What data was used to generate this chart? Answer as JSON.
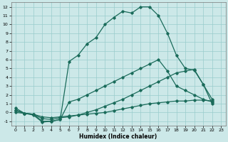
{
  "xlabel": "Humidex (Indice chaleur)",
  "xlim": [
    -0.5,
    23.5
  ],
  "ylim": [
    -1.5,
    12.5
  ],
  "xticks": [
    0,
    1,
    2,
    3,
    4,
    5,
    6,
    7,
    8,
    9,
    10,
    11,
    12,
    13,
    14,
    15,
    16,
    17,
    18,
    19,
    20,
    21,
    22,
    23
  ],
  "yticks": [
    -1,
    0,
    1,
    2,
    3,
    4,
    5,
    6,
    7,
    8,
    9,
    10,
    11,
    12
  ],
  "background_color": "#cce8e8",
  "grid_color": "#99cccc",
  "line_color": "#1a6b5a",
  "line1_x": [
    0,
    1,
    2,
    3,
    4,
    5,
    6,
    7,
    8,
    9,
    10,
    11,
    12,
    13,
    14,
    15,
    16,
    17,
    18,
    19,
    20,
    21,
    22
  ],
  "line1_y": [
    0.5,
    -0.1,
    -0.3,
    -1.1,
    -1.0,
    -0.8,
    5.8,
    6.5,
    7.8,
    8.5,
    10.0,
    10.8,
    11.5,
    11.3,
    12.0,
    12.0,
    11.0,
    9.0,
    6.5,
    5.0,
    4.8,
    3.2,
    1.5
  ],
  "line2_x": [
    0,
    1,
    2,
    3,
    4,
    5,
    6,
    7,
    8,
    9,
    10,
    11,
    12,
    13,
    14,
    15,
    16,
    17,
    18,
    19,
    20,
    21,
    22
  ],
  "line2_y": [
    0.3,
    -0.1,
    -0.2,
    -1.0,
    -1.0,
    -0.8,
    1.2,
    1.5,
    2.0,
    2.5,
    3.0,
    3.5,
    4.0,
    4.5,
    5.0,
    5.5,
    6.0,
    4.7,
    3.0,
    2.5,
    2.0,
    1.5,
    1.2
  ],
  "line3_x": [
    0,
    1,
    2,
    3,
    4,
    5,
    6,
    7,
    8,
    9,
    10,
    11,
    12,
    13,
    14,
    15,
    16,
    17,
    18,
    19,
    20,
    21,
    22
  ],
  "line3_y": [
    0.2,
    -0.1,
    -0.2,
    -0.7,
    -0.8,
    -0.6,
    -0.5,
    -0.3,
    0.0,
    0.3,
    0.7,
    1.1,
    1.5,
    2.0,
    2.5,
    3.0,
    3.5,
    4.0,
    4.5,
    4.7,
    4.9,
    3.2,
    1.0
  ],
  "line4_x": [
    0,
    1,
    2,
    3,
    4,
    5,
    6,
    7,
    8,
    9,
    10,
    11,
    12,
    13,
    14,
    15,
    16,
    17,
    18,
    19,
    20,
    21,
    22
  ],
  "line4_y": [
    0.0,
    -0.1,
    -0.2,
    -0.5,
    -0.6,
    -0.5,
    -0.4,
    -0.3,
    -0.2,
    -0.1,
    0.0,
    0.2,
    0.4,
    0.6,
    0.8,
    1.0,
    1.1,
    1.2,
    1.3,
    1.3,
    1.4,
    1.4,
    1.3
  ]
}
